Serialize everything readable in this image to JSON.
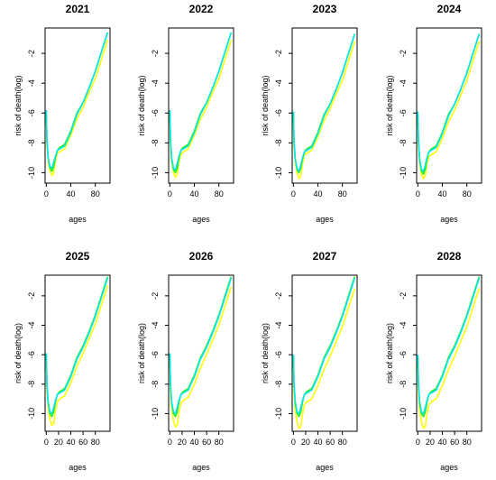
{
  "colors": {
    "yellow": "#ffff00",
    "cyan": "#00e5ee",
    "green": "#22ee22",
    "frame": "#000000"
  },
  "chart_data": [
    {
      "type": "line",
      "title": "2021",
      "xlabel": "ages",
      "ylabel": "risk of death(log)",
      "x_ticks": [
        "0",
        "40",
        "80"
      ],
      "y_ticks": [
        "-10",
        "-8",
        "-6",
        "-4",
        "-2"
      ],
      "xlim": [
        -2,
        104
      ],
      "ylim": [
        -10.7,
        -0.3
      ],
      "series": [
        {
          "color": "yellow",
          "x": [
            0,
            1,
            3,
            6,
            9,
            12,
            15,
            18,
            22,
            30,
            40,
            50,
            60,
            70,
            80,
            90,
            100
          ],
          "y": [
            -6.3,
            -8.0,
            -9.2,
            -9.9,
            -10.2,
            -10.0,
            -9.2,
            -8.7,
            -8.6,
            -8.4,
            -7.5,
            -6.4,
            -5.6,
            -4.6,
            -3.7,
            -2.4,
            -1.1
          ]
        },
        {
          "color": "green",
          "x": [
            0,
            1,
            3,
            6,
            9,
            12,
            15,
            18,
            22,
            30,
            40,
            50,
            60,
            70,
            80,
            90,
            100
          ],
          "y": [
            -5.9,
            -7.8,
            -9.0,
            -9.7,
            -9.9,
            -9.6,
            -9.0,
            -8.5,
            -8.3,
            -8.1,
            -7.2,
            -6.0,
            -5.3,
            -4.3,
            -3.2,
            -1.9,
            -0.6
          ]
        },
        {
          "color": "cyan",
          "x": [
            0,
            1,
            3,
            6,
            9,
            12,
            15,
            18,
            22,
            30,
            40,
            50,
            60,
            70,
            80,
            90,
            100
          ],
          "y": [
            -5.8,
            -7.7,
            -9.0,
            -9.6,
            -9.7,
            -9.3,
            -8.9,
            -8.5,
            -8.4,
            -8.2,
            -7.3,
            -6.1,
            -5.3,
            -4.3,
            -3.2,
            -1.9,
            -0.6
          ]
        }
      ]
    },
    {
      "type": "line",
      "title": "2022",
      "xlabel": "ages",
      "ylabel": "risk of death(log)",
      "x_ticks": [
        "0",
        "40",
        "80"
      ],
      "y_ticks": [
        "-10",
        "-8",
        "-6",
        "-4",
        "-2"
      ],
      "xlim": [
        -2,
        104
      ],
      "ylim": [
        -10.7,
        -0.3
      ],
      "series": [
        {
          "color": "yellow",
          "x": [
            0,
            1,
            3,
            6,
            9,
            12,
            15,
            18,
            22,
            30,
            40,
            50,
            60,
            70,
            80,
            90,
            100
          ],
          "y": [
            -6.3,
            -8.1,
            -9.3,
            -10.0,
            -10.3,
            -10.1,
            -9.3,
            -8.8,
            -8.6,
            -8.4,
            -7.5,
            -6.4,
            -5.6,
            -4.6,
            -3.7,
            -2.4,
            -1.1
          ]
        },
        {
          "color": "green",
          "x": [
            0,
            1,
            3,
            6,
            9,
            12,
            15,
            18,
            22,
            30,
            40,
            50,
            60,
            70,
            80,
            90,
            100
          ],
          "y": [
            -5.9,
            -7.8,
            -9.1,
            -9.8,
            -10.0,
            -9.7,
            -9.0,
            -8.5,
            -8.3,
            -8.1,
            -7.2,
            -6.0,
            -5.3,
            -4.3,
            -3.2,
            -1.9,
            -0.6
          ]
        },
        {
          "color": "cyan",
          "x": [
            0,
            1,
            3,
            6,
            9,
            12,
            15,
            18,
            22,
            30,
            40,
            50,
            60,
            70,
            80,
            90,
            100
          ],
          "y": [
            -5.8,
            -7.7,
            -9.0,
            -9.7,
            -9.8,
            -9.4,
            -8.9,
            -8.5,
            -8.4,
            -8.2,
            -7.3,
            -6.1,
            -5.3,
            -4.3,
            -3.2,
            -1.9,
            -0.6
          ]
        }
      ]
    },
    {
      "type": "line",
      "title": "2023",
      "xlabel": "ages",
      "ylabel": "risk of death(log)",
      "x_ticks": [
        "0",
        "40",
        "80"
      ],
      "y_ticks": [
        "-10",
        "-8",
        "-6",
        "-4",
        "-2"
      ],
      "xlim": [
        -2,
        104
      ],
      "ylim": [
        -10.7,
        -0.3
      ],
      "series": [
        {
          "color": "yellow",
          "x": [
            0,
            1,
            3,
            6,
            9,
            12,
            15,
            18,
            22,
            30,
            40,
            50,
            60,
            70,
            80,
            90,
            100
          ],
          "y": [
            -6.4,
            -8.1,
            -9.3,
            -10.0,
            -10.4,
            -10.2,
            -9.4,
            -8.8,
            -8.7,
            -8.5,
            -7.6,
            -6.5,
            -5.7,
            -4.7,
            -3.8,
            -2.5,
            -1.2
          ]
        },
        {
          "color": "green",
          "x": [
            0,
            1,
            3,
            6,
            9,
            12,
            15,
            18,
            22,
            30,
            40,
            50,
            60,
            70,
            80,
            90,
            100
          ],
          "y": [
            -6.0,
            -7.9,
            -9.1,
            -9.8,
            -10.0,
            -9.7,
            -9.1,
            -8.6,
            -8.4,
            -8.2,
            -7.3,
            -6.1,
            -5.4,
            -4.4,
            -3.3,
            -2.0,
            -0.7
          ]
        },
        {
          "color": "cyan",
          "x": [
            0,
            1,
            3,
            6,
            9,
            12,
            15,
            18,
            22,
            30,
            40,
            50,
            60,
            70,
            80,
            90,
            100
          ],
          "y": [
            -5.9,
            -7.8,
            -9.1,
            -9.7,
            -9.9,
            -9.5,
            -9.0,
            -8.6,
            -8.5,
            -8.3,
            -7.4,
            -6.2,
            -5.4,
            -4.4,
            -3.3,
            -2.0,
            -0.7
          ]
        }
      ]
    },
    {
      "type": "line",
      "title": "2024",
      "xlabel": "ages",
      "ylabel": "risk of death(log)",
      "x_ticks": [
        "0",
        "40",
        "80"
      ],
      "y_ticks": [
        "-10",
        "-8",
        "-6",
        "-4",
        "-2"
      ],
      "xlim": [
        -2,
        104
      ],
      "ylim": [
        -10.7,
        -0.3
      ],
      "series": [
        {
          "color": "yellow",
          "x": [
            0,
            1,
            3,
            6,
            9,
            12,
            15,
            18,
            22,
            30,
            40,
            50,
            60,
            70,
            80,
            90,
            100
          ],
          "y": [
            -6.4,
            -8.2,
            -9.4,
            -10.1,
            -10.4,
            -10.2,
            -9.4,
            -8.9,
            -8.8,
            -8.6,
            -7.7,
            -6.6,
            -5.8,
            -4.8,
            -3.8,
            -2.5,
            -1.2
          ]
        },
        {
          "color": "green",
          "x": [
            0,
            1,
            3,
            6,
            9,
            12,
            15,
            18,
            22,
            30,
            40,
            50,
            60,
            70,
            80,
            90,
            100
          ],
          "y": [
            -6.0,
            -7.9,
            -9.2,
            -9.9,
            -10.1,
            -9.8,
            -9.1,
            -8.6,
            -8.4,
            -8.2,
            -7.3,
            -6.1,
            -5.4,
            -4.4,
            -3.3,
            -2.0,
            -0.7
          ]
        },
        {
          "color": "cyan",
          "x": [
            0,
            1,
            3,
            6,
            9,
            12,
            15,
            18,
            22,
            30,
            40,
            50,
            60,
            70,
            80,
            90,
            100
          ],
          "y": [
            -5.9,
            -7.8,
            -9.1,
            -9.8,
            -9.9,
            -9.5,
            -9.0,
            -8.6,
            -8.5,
            -8.3,
            -7.4,
            -6.2,
            -5.4,
            -4.4,
            -3.3,
            -2.0,
            -0.7
          ]
        }
      ]
    },
    {
      "type": "line",
      "title": "2025",
      "xlabel": "ages",
      "ylabel": "risk of death(log)",
      "x_ticks": [
        "0",
        "20",
        "40",
        "60",
        "80"
      ],
      "y_ticks": [
        "-10",
        "-8",
        "-6",
        "-4",
        "-2"
      ],
      "xlim": [
        -2,
        104
      ],
      "ylim": [
        -11.2,
        -0.6
      ],
      "series": [
        {
          "color": "yellow",
          "x": [
            0,
            1,
            3,
            6,
            9,
            12,
            15,
            18,
            22,
            30,
            40,
            50,
            60,
            70,
            80,
            90,
            100
          ],
          "y": [
            -6.5,
            -8.3,
            -9.6,
            -10.4,
            -10.8,
            -10.7,
            -9.8,
            -9.2,
            -9.0,
            -8.8,
            -7.9,
            -6.8,
            -5.9,
            -4.9,
            -3.9,
            -2.6,
            -1.3
          ]
        },
        {
          "color": "green",
          "x": [
            0,
            1,
            3,
            6,
            9,
            12,
            15,
            18,
            22,
            30,
            40,
            50,
            60,
            70,
            80,
            90,
            100
          ],
          "y": [
            -6.0,
            -8.0,
            -9.3,
            -10.0,
            -10.2,
            -9.9,
            -9.2,
            -8.7,
            -8.5,
            -8.3,
            -7.4,
            -6.2,
            -5.4,
            -4.4,
            -3.3,
            -2.0,
            -0.7
          ]
        },
        {
          "color": "cyan",
          "x": [
            0,
            1,
            3,
            6,
            9,
            12,
            15,
            18,
            22,
            30,
            40,
            50,
            60,
            70,
            80,
            90,
            100
          ],
          "y": [
            -5.9,
            -7.9,
            -9.2,
            -9.9,
            -10.0,
            -9.6,
            -9.1,
            -8.7,
            -8.6,
            -8.4,
            -7.5,
            -6.3,
            -5.5,
            -4.5,
            -3.4,
            -2.1,
            -0.8
          ]
        }
      ]
    },
    {
      "type": "line",
      "title": "2026",
      "xlabel": "ages",
      "ylabel": "risk of death(log)",
      "x_ticks": [
        "0",
        "20",
        "40",
        "60",
        "80"
      ],
      "y_ticks": [
        "-10",
        "-8",
        "-6",
        "-4",
        "-2"
      ],
      "xlim": [
        -2,
        104
      ],
      "ylim": [
        -11.2,
        -0.6
      ],
      "series": [
        {
          "color": "yellow",
          "x": [
            0,
            1,
            3,
            6,
            9,
            12,
            15,
            18,
            22,
            30,
            40,
            50,
            60,
            70,
            80,
            90,
            100
          ],
          "y": [
            -6.5,
            -8.4,
            -9.7,
            -10.5,
            -10.9,
            -10.8,
            -9.9,
            -9.3,
            -9.1,
            -8.9,
            -8.0,
            -6.9,
            -6.0,
            -5.0,
            -4.0,
            -2.7,
            -1.4
          ]
        },
        {
          "color": "green",
          "x": [
            0,
            1,
            3,
            6,
            9,
            12,
            15,
            18,
            22,
            30,
            40,
            50,
            60,
            70,
            80,
            90,
            100
          ],
          "y": [
            -6.0,
            -8.0,
            -9.3,
            -10.0,
            -10.2,
            -9.9,
            -9.2,
            -8.7,
            -8.5,
            -8.3,
            -7.4,
            -6.2,
            -5.4,
            -4.4,
            -3.3,
            -2.0,
            -0.7
          ]
        },
        {
          "color": "cyan",
          "x": [
            0,
            1,
            3,
            6,
            9,
            12,
            15,
            18,
            22,
            30,
            40,
            50,
            60,
            70,
            80,
            90,
            100
          ],
          "y": [
            -5.9,
            -7.9,
            -9.2,
            -9.9,
            -10.0,
            -9.6,
            -9.1,
            -8.7,
            -8.6,
            -8.4,
            -7.5,
            -6.3,
            -5.5,
            -4.5,
            -3.4,
            -2.1,
            -0.8
          ]
        }
      ]
    },
    {
      "type": "line",
      "title": "2027",
      "xlabel": "ages",
      "ylabel": "risk of death(log)",
      "x_ticks": [
        "0",
        "20",
        "40",
        "60",
        "80"
      ],
      "y_ticks": [
        "-10",
        "-8",
        "-6",
        "-4",
        "-2"
      ],
      "xlim": [
        -2,
        104
      ],
      "ylim": [
        -11.2,
        -0.6
      ],
      "series": [
        {
          "color": "yellow",
          "x": [
            0,
            1,
            3,
            6,
            9,
            12,
            15,
            18,
            22,
            30,
            40,
            50,
            60,
            70,
            80,
            90,
            100
          ],
          "y": [
            -6.6,
            -8.5,
            -9.8,
            -10.6,
            -11.0,
            -10.9,
            -10.0,
            -9.4,
            -9.2,
            -9.0,
            -8.1,
            -7.0,
            -6.1,
            -5.1,
            -4.1,
            -2.8,
            -1.5
          ]
        },
        {
          "color": "green",
          "x": [
            0,
            1,
            3,
            6,
            9,
            12,
            15,
            18,
            22,
            30,
            40,
            50,
            60,
            70,
            80,
            90,
            100
          ],
          "y": [
            -6.1,
            -8.0,
            -9.3,
            -10.0,
            -10.2,
            -9.9,
            -9.2,
            -8.7,
            -8.5,
            -8.3,
            -7.4,
            -6.2,
            -5.4,
            -4.4,
            -3.3,
            -2.0,
            -0.7
          ]
        },
        {
          "color": "cyan",
          "x": [
            0,
            1,
            3,
            6,
            9,
            12,
            15,
            18,
            22,
            30,
            40,
            50,
            60,
            70,
            80,
            90,
            100
          ],
          "y": [
            -6.0,
            -7.9,
            -9.2,
            -9.9,
            -10.0,
            -9.6,
            -9.1,
            -8.7,
            -8.6,
            -8.4,
            -7.5,
            -6.3,
            -5.5,
            -4.5,
            -3.4,
            -2.1,
            -0.8
          ]
        }
      ]
    },
    {
      "type": "line",
      "title": "2028",
      "xlabel": "ages",
      "ylabel": "risk of death(log)",
      "x_ticks": [
        "0",
        "20",
        "40",
        "60",
        "80"
      ],
      "y_ticks": [
        "-10",
        "-8",
        "-6",
        "-4",
        "-2"
      ],
      "xlim": [
        -2,
        104
      ],
      "ylim": [
        -11.2,
        -0.6
      ],
      "series": [
        {
          "color": "yellow",
          "x": [
            0,
            1,
            3,
            6,
            9,
            12,
            15,
            18,
            22,
            30,
            40,
            50,
            60,
            70,
            80,
            90,
            100
          ],
          "y": [
            -6.6,
            -8.5,
            -9.8,
            -10.6,
            -11.0,
            -10.9,
            -10.0,
            -9.4,
            -9.2,
            -9.0,
            -8.1,
            -7.0,
            -6.1,
            -5.1,
            -4.1,
            -2.8,
            -1.5
          ]
        },
        {
          "color": "green",
          "x": [
            0,
            1,
            3,
            6,
            9,
            12,
            15,
            18,
            22,
            30,
            40,
            50,
            60,
            70,
            80,
            90,
            100
          ],
          "y": [
            -6.1,
            -8.0,
            -9.3,
            -10.0,
            -10.2,
            -9.9,
            -9.2,
            -8.7,
            -8.5,
            -8.3,
            -7.4,
            -6.2,
            -5.4,
            -4.4,
            -3.3,
            -2.0,
            -0.7
          ]
        },
        {
          "color": "cyan",
          "x": [
            0,
            1,
            3,
            6,
            9,
            12,
            15,
            18,
            22,
            30,
            40,
            50,
            60,
            70,
            80,
            90,
            100
          ],
          "y": [
            -6.0,
            -7.9,
            -9.2,
            -9.9,
            -10.0,
            -9.6,
            -9.1,
            -8.7,
            -8.6,
            -8.4,
            -7.5,
            -6.3,
            -5.5,
            -4.5,
            -3.4,
            -2.1,
            -0.8
          ]
        }
      ]
    }
  ]
}
